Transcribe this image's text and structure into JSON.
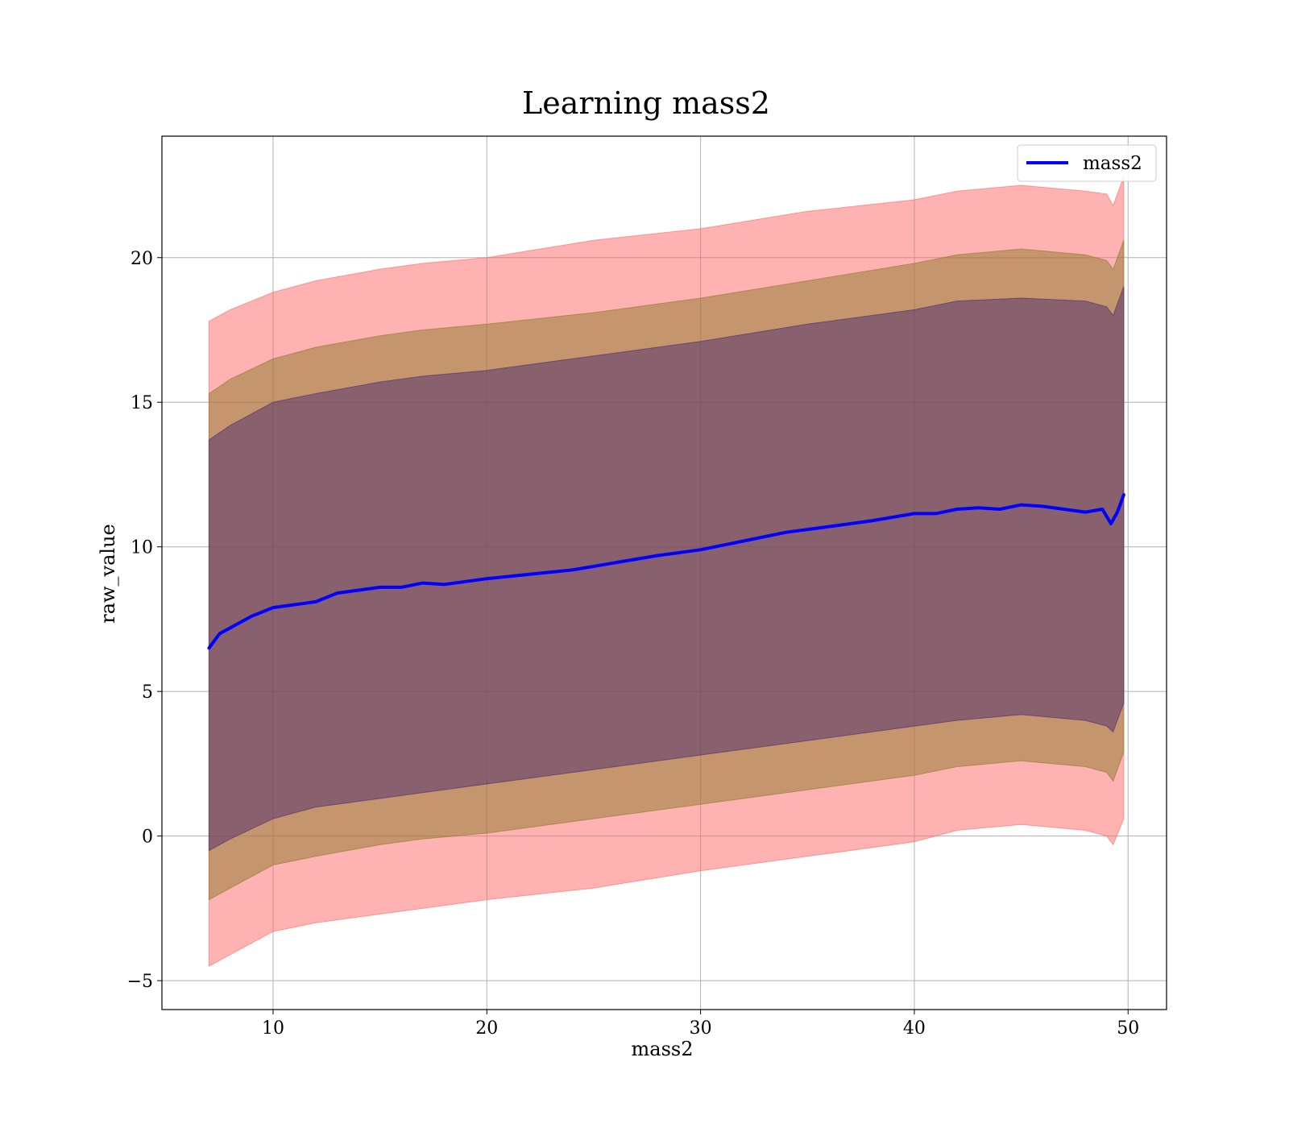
{
  "chart_data": {
    "type": "line",
    "title": "Learning mass2",
    "xlabel": "mass2",
    "ylabel": "raw_value",
    "xlim": [
      4.8,
      51.8
    ],
    "ylim": [
      -6.0,
      24.2
    ],
    "x_ticks": [
      10,
      20,
      30,
      40,
      50
    ],
    "y_ticks": [
      -5,
      0,
      5,
      10,
      15,
      20
    ],
    "y_tick_labels": [
      "−5",
      "0",
      "5",
      "10",
      "15",
      "20"
    ],
    "grid": true,
    "legend_position": "top-right",
    "series": [
      {
        "name": "mass2",
        "color": "#0000ff",
        "points": [
          [
            7.0,
            6.5
          ],
          [
            7.5,
            7.0
          ],
          [
            8.0,
            7.2
          ],
          [
            9.0,
            7.6
          ],
          [
            10.0,
            7.9
          ],
          [
            11.0,
            8.0
          ],
          [
            12.0,
            8.1
          ],
          [
            13.0,
            8.4
          ],
          [
            14.0,
            8.5
          ],
          [
            15.0,
            8.6
          ],
          [
            16.0,
            8.6
          ],
          [
            17.0,
            8.75
          ],
          [
            18.0,
            8.7
          ],
          [
            19.0,
            8.8
          ],
          [
            20.0,
            8.9
          ],
          [
            22.0,
            9.05
          ],
          [
            24.0,
            9.2
          ],
          [
            26.0,
            9.45
          ],
          [
            28.0,
            9.7
          ],
          [
            30.0,
            9.9
          ],
          [
            32.0,
            10.2
          ],
          [
            34.0,
            10.5
          ],
          [
            36.0,
            10.7
          ],
          [
            38.0,
            10.9
          ],
          [
            40.0,
            11.15
          ],
          [
            41.0,
            11.15
          ],
          [
            42.0,
            11.3
          ],
          [
            43.0,
            11.35
          ],
          [
            44.0,
            11.3
          ],
          [
            45.0,
            11.45
          ],
          [
            46.0,
            11.4
          ],
          [
            47.0,
            11.3
          ],
          [
            48.0,
            11.2
          ],
          [
            48.8,
            11.3
          ],
          [
            49.2,
            10.8
          ],
          [
            49.5,
            11.2
          ],
          [
            49.8,
            11.8
          ]
        ]
      }
    ],
    "bands": [
      {
        "name": "",
        "color": "#ff6666",
        "lower": [
          [
            7.0,
            -4.5
          ],
          [
            8.0,
            -4.1
          ],
          [
            10.0,
            -3.3
          ],
          [
            12.0,
            -3.0
          ],
          [
            15.0,
            -2.7
          ],
          [
            17.0,
            -2.5
          ],
          [
            20.0,
            -2.2
          ],
          [
            25.0,
            -1.8
          ],
          [
            30.0,
            -1.2
          ],
          [
            35.0,
            -0.7
          ],
          [
            40.0,
            -0.2
          ],
          [
            42.0,
            0.2
          ],
          [
            45.0,
            0.4
          ],
          [
            48.0,
            0.2
          ],
          [
            49.0,
            0.0
          ],
          [
            49.3,
            -0.3
          ],
          [
            49.8,
            0.6
          ]
        ],
        "upper": [
          [
            7.0,
            17.8
          ],
          [
            8.0,
            18.2
          ],
          [
            10.0,
            18.8
          ],
          [
            12.0,
            19.2
          ],
          [
            15.0,
            19.6
          ],
          [
            17.0,
            19.8
          ],
          [
            20.0,
            20.0
          ],
          [
            25.0,
            20.6
          ],
          [
            30.0,
            21.0
          ],
          [
            35.0,
            21.6
          ],
          [
            40.0,
            22.0
          ],
          [
            42.0,
            22.3
          ],
          [
            45.0,
            22.5
          ],
          [
            48.0,
            22.3
          ],
          [
            49.0,
            22.2
          ],
          [
            49.3,
            21.8
          ],
          [
            49.8,
            22.8
          ]
        ]
      },
      {
        "name": "",
        "color": "#8b7a2a",
        "lower": [
          [
            7.0,
            -2.2
          ],
          [
            8.0,
            -1.8
          ],
          [
            10.0,
            -1.0
          ],
          [
            12.0,
            -0.7
          ],
          [
            15.0,
            -0.3
          ],
          [
            17.0,
            -0.1
          ],
          [
            20.0,
            0.1
          ],
          [
            25.0,
            0.6
          ],
          [
            30.0,
            1.1
          ],
          [
            35.0,
            1.6
          ],
          [
            40.0,
            2.1
          ],
          [
            42.0,
            2.4
          ],
          [
            45.0,
            2.6
          ],
          [
            48.0,
            2.4
          ],
          [
            49.0,
            2.2
          ],
          [
            49.3,
            1.9
          ],
          [
            49.8,
            2.9
          ]
        ],
        "upper": [
          [
            7.0,
            15.3
          ],
          [
            8.0,
            15.8
          ],
          [
            10.0,
            16.5
          ],
          [
            12.0,
            16.9
          ],
          [
            15.0,
            17.3
          ],
          [
            17.0,
            17.5
          ],
          [
            20.0,
            17.7
          ],
          [
            25.0,
            18.1
          ],
          [
            30.0,
            18.6
          ],
          [
            35.0,
            19.2
          ],
          [
            40.0,
            19.8
          ],
          [
            42.0,
            20.1
          ],
          [
            45.0,
            20.3
          ],
          [
            48.0,
            20.1
          ],
          [
            49.0,
            19.9
          ],
          [
            49.3,
            19.6
          ],
          [
            49.8,
            20.6
          ]
        ]
      },
      {
        "name": "",
        "color": "#4b2a6e",
        "lower": [
          [
            7.0,
            -0.5
          ],
          [
            8.0,
            -0.1
          ],
          [
            10.0,
            0.6
          ],
          [
            12.0,
            1.0
          ],
          [
            15.0,
            1.3
          ],
          [
            17.0,
            1.5
          ],
          [
            20.0,
            1.8
          ],
          [
            25.0,
            2.3
          ],
          [
            30.0,
            2.8
          ],
          [
            35.0,
            3.3
          ],
          [
            40.0,
            3.8
          ],
          [
            42.0,
            4.0
          ],
          [
            45.0,
            4.2
          ],
          [
            48.0,
            4.0
          ],
          [
            49.0,
            3.8
          ],
          [
            49.3,
            3.6
          ],
          [
            49.8,
            4.6
          ]
        ],
        "upper": [
          [
            7.0,
            13.7
          ],
          [
            8.0,
            14.2
          ],
          [
            10.0,
            15.0
          ],
          [
            12.0,
            15.3
          ],
          [
            15.0,
            15.7
          ],
          [
            17.0,
            15.9
          ],
          [
            20.0,
            16.1
          ],
          [
            25.0,
            16.6
          ],
          [
            30.0,
            17.1
          ],
          [
            35.0,
            17.7
          ],
          [
            40.0,
            18.2
          ],
          [
            42.0,
            18.5
          ],
          [
            45.0,
            18.6
          ],
          [
            48.0,
            18.5
          ],
          [
            49.0,
            18.3
          ],
          [
            49.3,
            18.0
          ],
          [
            49.8,
            19.0
          ]
        ]
      }
    ]
  }
}
